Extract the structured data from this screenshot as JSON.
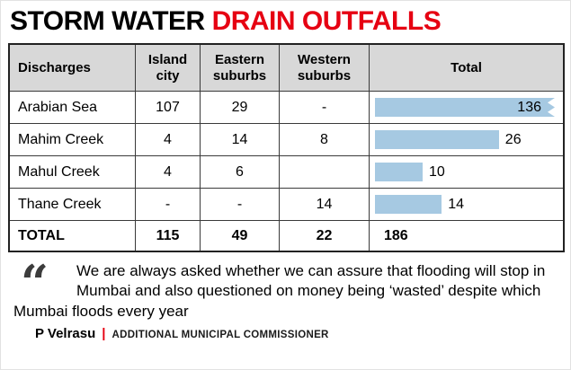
{
  "title": {
    "part1": "STORM WATER ",
    "part2": "DRAIN OUTFALLS"
  },
  "chart_data": {
    "type": "table",
    "title": "STORM WATER DRAIN OUTFALLS",
    "columns": [
      "Discharges",
      "Island city",
      "Eastern suburbs",
      "Western suburbs",
      "Total"
    ],
    "rows": [
      {
        "name": "Arabian Sea",
        "island_city": "107",
        "eastern_suburbs": "29",
        "western_suburbs": "-",
        "total": 136
      },
      {
        "name": "Mahim Creek",
        "island_city": "4",
        "eastern_suburbs": "14",
        "western_suburbs": "8",
        "total": 26
      },
      {
        "name": "Mahul Creek",
        "island_city": "4",
        "eastern_suburbs": "6",
        "western_suburbs": "",
        "total": 10
      },
      {
        "name": "Thane Creek",
        "island_city": "-",
        "eastern_suburbs": "-",
        "western_suburbs": "14",
        "total": 14
      }
    ],
    "total_row": {
      "name": "TOTAL",
      "island_city": "115",
      "eastern_suburbs": "49",
      "western_suburbs": "22",
      "total": "186"
    },
    "bar_notes": "horizontal light-blue bars in Total column; Arabian Sea bar (136) is clipped with a torn right edge"
  },
  "quote": {
    "mark": "“",
    "text": "We are always asked whether we can assure that flooding will stop in Mumbai and also questioned on money being ‘wasted’ despite which Mumbai floods every year",
    "author": "P Velrasu",
    "separator": "|",
    "role": "ADDITIONAL MUNICIPAL COMMISSIONER"
  },
  "colors": {
    "accent_red": "#e60012",
    "bar_blue": "#a6c9e2",
    "header_grey": "#d8d8d8"
  }
}
